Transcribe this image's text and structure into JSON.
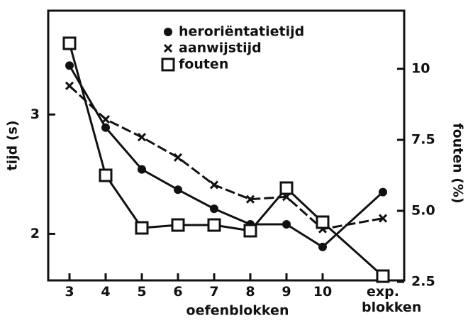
{
  "chart_data": {
    "type": "line",
    "categories": [
      "3",
      "4",
      "5",
      "6",
      "7",
      "8",
      "9",
      "10",
      "exp. blokken"
    ],
    "xlabel": "oefenblokken",
    "ylabel": "tijd (s)",
    "y2label": "fouten (%)",
    "ylim": [
      1.61,
      3.87
    ],
    "yticks": [
      2,
      3
    ],
    "y2lim": [
      2.55,
      12.05
    ],
    "y2ticks": [
      10,
      7.5,
      {
        "value": 5,
        "label": "5.0"
      },
      2.5
    ],
    "grid": false,
    "series": [
      {
        "name": "heroriëntatietijd",
        "color": "#111111",
        "marker": "dot",
        "values": [
          3.41,
          2.89,
          2.54,
          2.37,
          2.21,
          2.08,
          2.08,
          1.89,
          2.35
        ]
      },
      {
        "name": "aanwijstijd",
        "color": "#111111",
        "marker": "x",
        "values": [
          3.24,
          2.96,
          2.81,
          2.64,
          2.41,
          2.29,
          2.31,
          2.04,
          2.13
        ]
      },
      {
        "name": "fouten",
        "color": "#111111",
        "marker": "square",
        "axis": "y2",
        "values": [
          10.9,
          6.25,
          4.4,
          4.5,
          4.5,
          4.3,
          5.8,
          4.6,
          2.7
        ]
      }
    ]
  }
}
